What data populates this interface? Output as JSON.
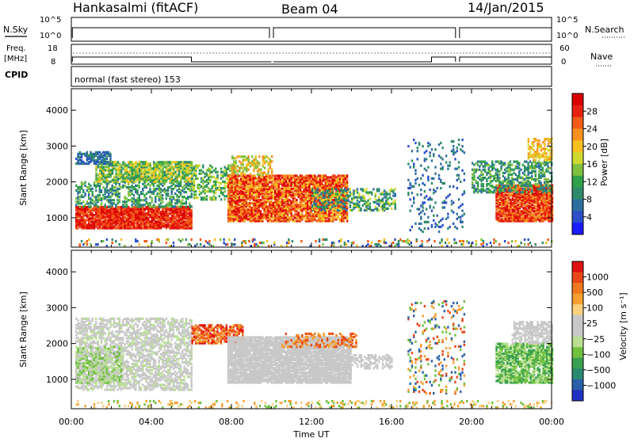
{
  "header": {
    "station": "Hankasalmi (fitACF)",
    "beam": "Beam 04",
    "date": "14/Jan/2015",
    "cpid_label": "CPID",
    "cpid_text": "normal (fast stereo) 153"
  },
  "top_panels": {
    "nsky_label": "N.Sky",
    "nsearch_label": "N.Search",
    "nsky_ticks": [
      "10^5",
      "10^0"
    ],
    "freq_label": "Freq.",
    "freq_unit": "[MHz]",
    "freq_ticks": [
      "18",
      "8"
    ],
    "nave_label": "Nave",
    "nave_ticks": [
      "60",
      "0"
    ]
  },
  "chart_data": [
    {
      "type": "heatmap",
      "panel": "power",
      "ylabel": "Slant Range [km]",
      "yticks": [
        "4000",
        "3000",
        "2000",
        "1000"
      ],
      "ylim": [
        180,
        4600
      ],
      "xlim": [
        0,
        24
      ],
      "colorbar": {
        "label": "Power [dB]",
        "ticks": [
          "28",
          "24",
          "20",
          "16",
          "12",
          "8",
          "4"
        ],
        "colors": [
          "#1a1aff",
          "#2a4fc8",
          "#2e6fa0",
          "#2f8a6a",
          "#2fa04a",
          "#7fc040",
          "#cfd830",
          "#f5c020",
          "#f89020",
          "#f25a18",
          "#e82010",
          "#d80000"
        ]
      }
    },
    {
      "type": "heatmap",
      "panel": "velocity",
      "ylabel": "Slant Range [km]",
      "yticks": [
        "4000",
        "3000",
        "2000",
        "1000"
      ],
      "ylim": [
        180,
        4600
      ],
      "xlim": [
        0,
        24
      ],
      "xticks": [
        "00:00",
        "04:00",
        "08:00",
        "12:00",
        "16:00",
        "20:00",
        "00:00"
      ],
      "xlabel": "Time UT",
      "colorbar": {
        "label": "Velocity [m s⁻¹]",
        "ticks": [
          "1000",
          "500",
          "100",
          "25",
          "−25",
          "−100",
          "−500",
          "−1000"
        ],
        "colors": [
          "#2030c0",
          "#2a60a8",
          "#2a8a70",
          "#3aa050",
          "#70c040",
          "#b8e090",
          "#c8c8c8",
          "#c8c8c8",
          "#f8d080",
          "#f5a030",
          "#f07820",
          "#e84818",
          "#e01010"
        ]
      }
    }
  ]
}
